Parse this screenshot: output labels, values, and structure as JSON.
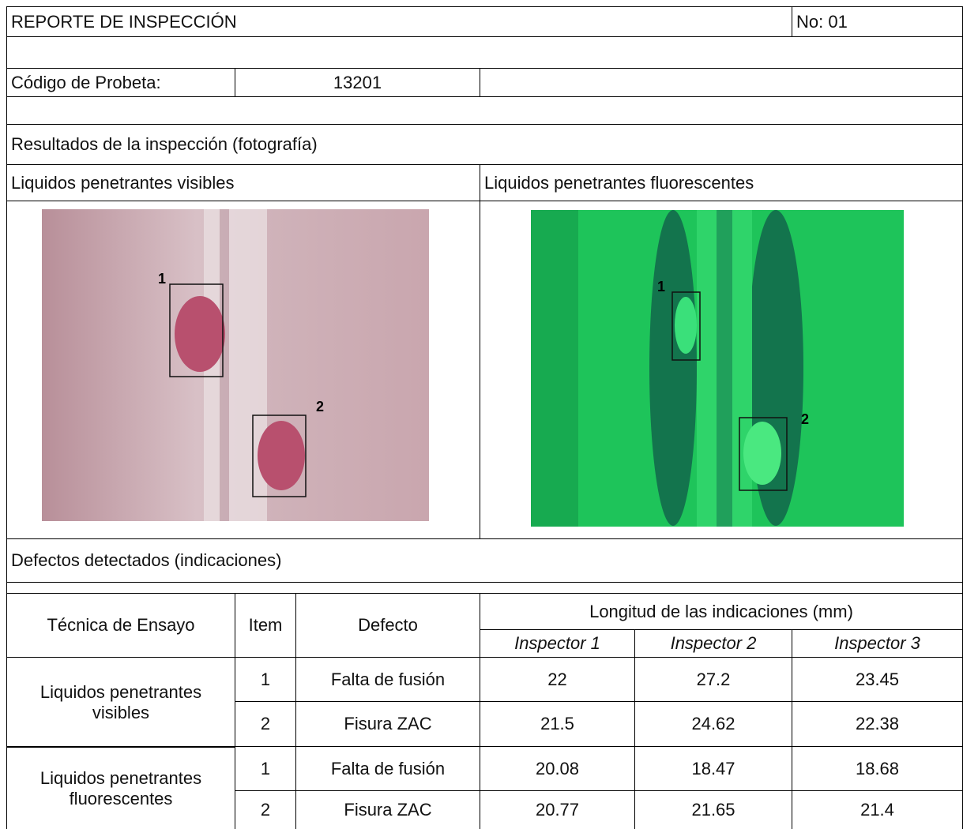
{
  "header": {
    "title": "REPORTE DE INSPECCIÓN",
    "number": "No: 01"
  },
  "specimen": {
    "label": "Código de Probeta:",
    "code": "13201"
  },
  "results_title": "Resultados de la inspección (fotografía)",
  "photos": [
    {
      "caption": "Liquidos penetrantes visibles",
      "markers": [
        "1",
        "2"
      ]
    },
    {
      "caption": "Liquidos penetrantes fluorescentes",
      "markers": [
        "1",
        "2"
      ]
    }
  ],
  "defects_title": "Defectos detectados (indicaciones)",
  "table": {
    "headers": {
      "technique": "Técnica de Ensayo",
      "item": "Item",
      "defect": "Defecto",
      "length": "Longitud de las indicaciones (mm)",
      "inspectors": [
        "Inspector 1",
        "Inspector 2",
        "Inspector 3"
      ]
    },
    "groups": [
      {
        "technique": "Liquidos penetrantes visibles",
        "rows": [
          {
            "item": 1,
            "defect": "Falta de fusión",
            "values": [
              22,
              27.2,
              23.45
            ]
          },
          {
            "item": 2,
            "defect": "Fisura ZAC",
            "values": [
              21.5,
              24.62,
              22.38
            ]
          }
        ]
      },
      {
        "technique": "Liquidos penetrantes fluorescentes",
        "rows": [
          {
            "item": 1,
            "defect": "Falta de fusión",
            "values": [
              20.08,
              18.47,
              18.68
            ]
          },
          {
            "item": 2,
            "defect": "Fisura ZAC",
            "values": [
              20.77,
              21.65,
              21.4
            ]
          }
        ]
      }
    ]
  }
}
